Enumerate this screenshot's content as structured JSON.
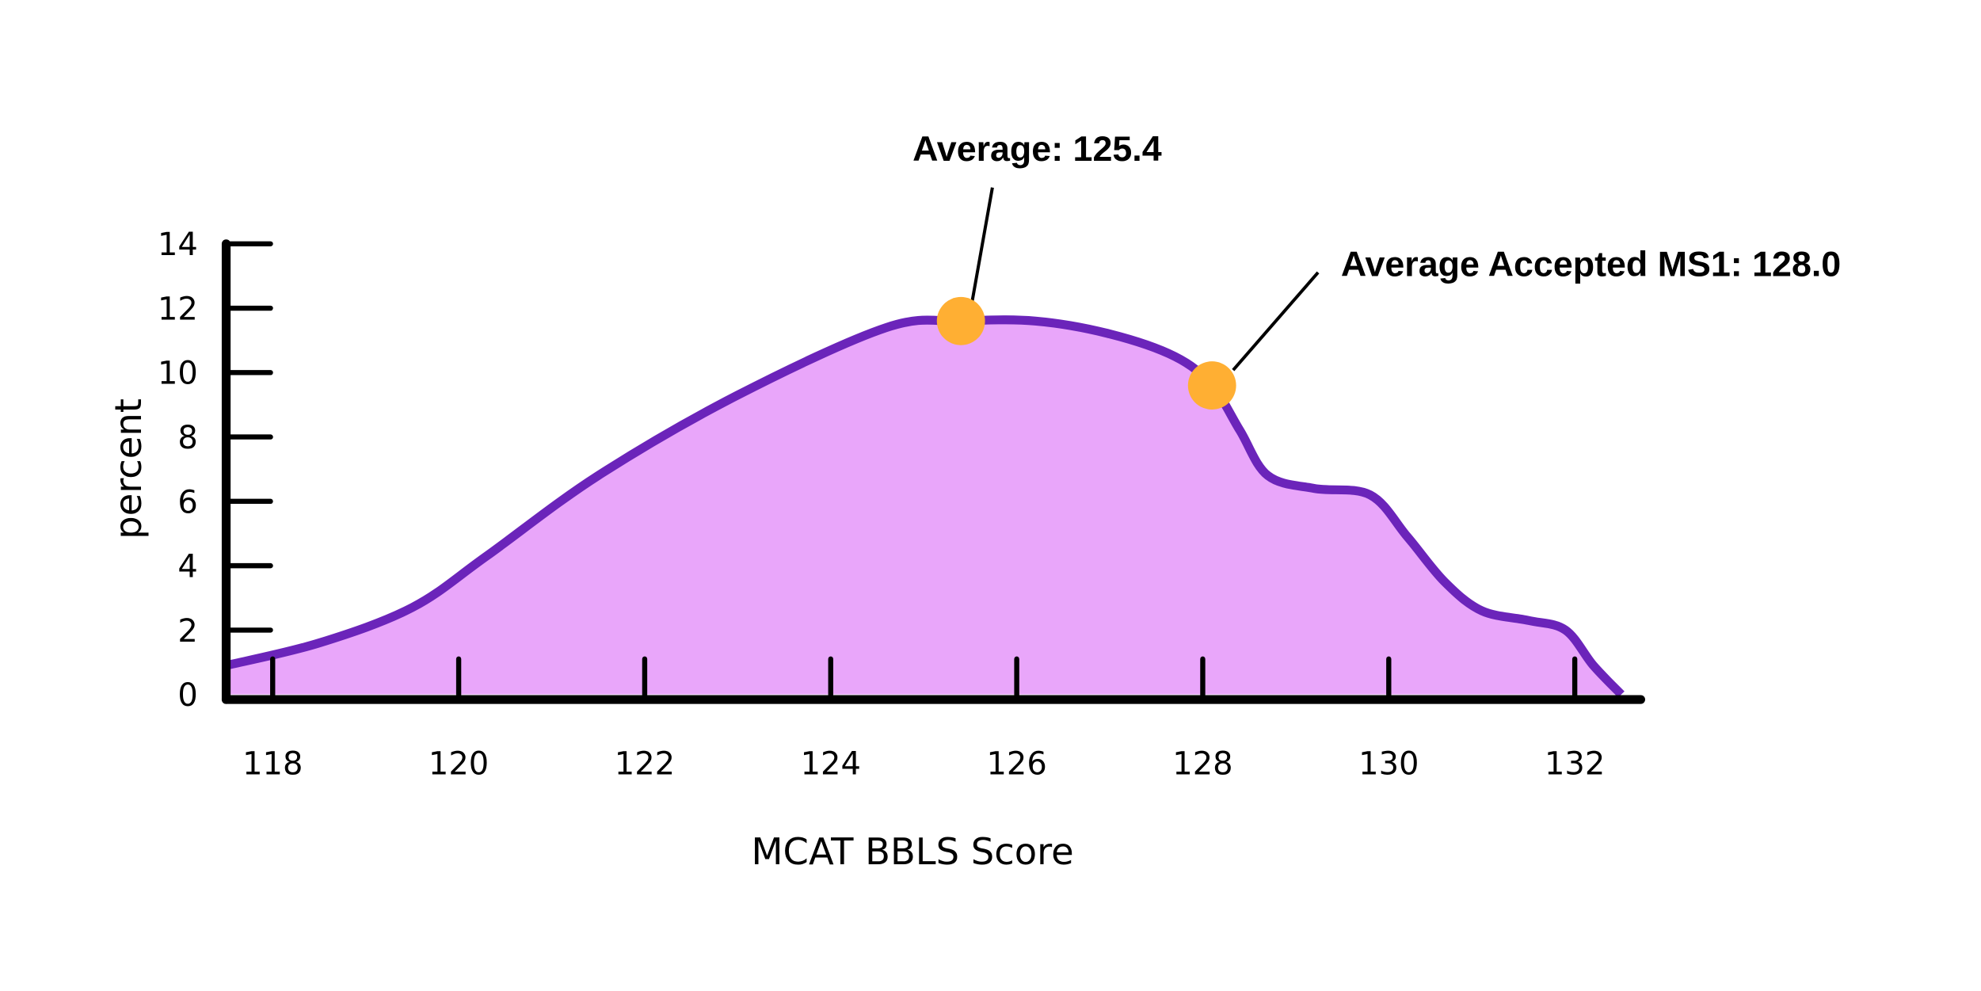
{
  "chart_data": {
    "type": "area",
    "title": "",
    "xlabel": "MCAT BBLS Score",
    "ylabel": "percent",
    "xlim": [
      117.5,
      132.6
    ],
    "ylim": [
      0,
      14
    ],
    "x_ticks": [
      118,
      120,
      122,
      124,
      126,
      128,
      130,
      132
    ],
    "y_ticks": [
      0,
      2,
      4,
      6,
      8,
      10,
      12,
      14
    ],
    "grid": false,
    "series": [
      {
        "x": [
          117.5,
          118.5,
          119.5,
          120.3,
          121.5,
          123,
          124.6,
          125.4,
          126.2,
          127.0,
          127.7,
          128.1,
          128.4,
          128.7,
          129.2,
          129.8,
          130.2,
          130.6,
          131.0,
          131.5,
          131.9,
          132.2,
          132.5
        ],
        "y": [
          0.9,
          1.6,
          2.7,
          4.3,
          6.8,
          9.3,
          11.4,
          11.6,
          11.6,
          11.2,
          10.5,
          9.6,
          8.2,
          6.8,
          6.4,
          6.2,
          4.9,
          3.5,
          2.6,
          2.3,
          2.0,
          0.9,
          0.0
        ]
      }
    ],
    "annotations": [
      {
        "text": "Average: 125.4",
        "x": 125.4,
        "y": 11.6
      },
      {
        "text": "Average Accepted MS1: 128.0",
        "x": 128.1,
        "y": 9.6
      }
    ],
    "colors": {
      "fill": "#E9A6FA",
      "line": "#6B24BA",
      "marker": "#FFAF33",
      "axis": "#000000"
    }
  }
}
